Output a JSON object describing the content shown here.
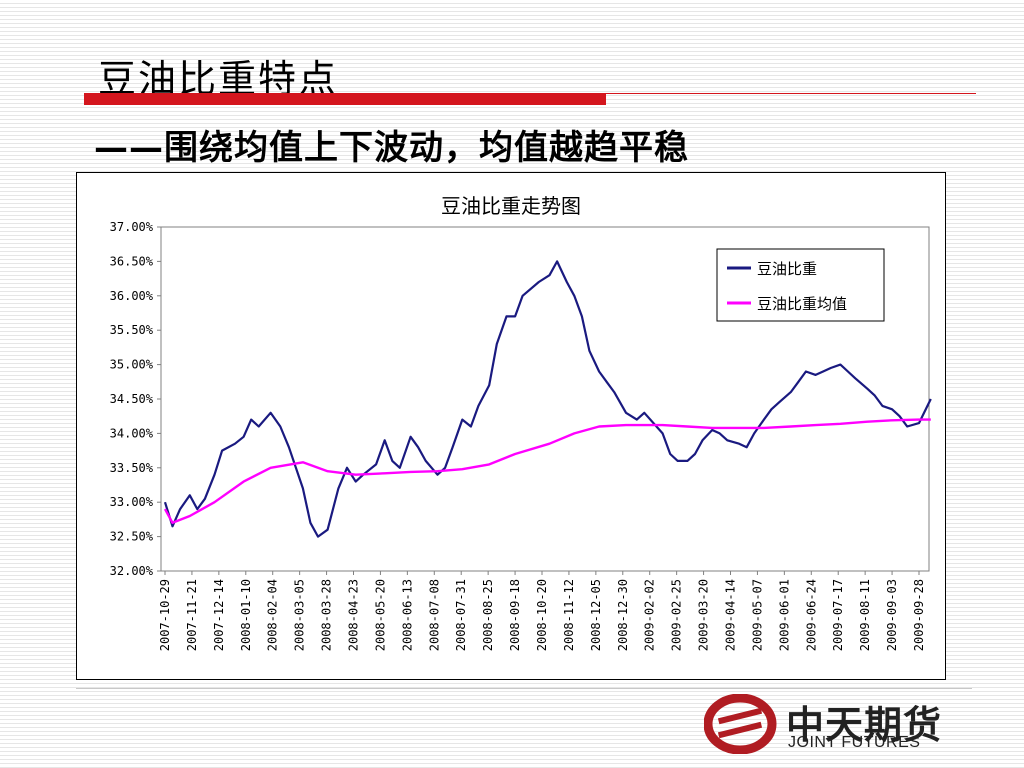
{
  "slide": {
    "title": "豆油比重特点",
    "subtitle": "——围绕均值上下波动，均值越趋平稳"
  },
  "logo": {
    "name_cn": "中天期货",
    "name_en": "JOINT FUTURES"
  },
  "colors": {
    "accent_red": "#d4161e",
    "series_main": "#1a1a80",
    "series_mean": "#ff00ff"
  },
  "chart_data": {
    "type": "line",
    "title": "豆油比重走势图",
    "xlabel": "",
    "ylabel": "",
    "ylim": [
      0.32,
      0.37
    ],
    "y_ticks": [
      "37.00%",
      "36.50%",
      "36.00%",
      "35.50%",
      "35.00%",
      "34.50%",
      "34.00%",
      "33.50%",
      "33.00%",
      "32.50%",
      "32.00%"
    ],
    "x_tick_labels": [
      "2007-10-29",
      "2007-11-21",
      "2007-12-14",
      "2008-01-10",
      "2008-02-04",
      "2008-03-05",
      "2008-03-28",
      "2008-04-23",
      "2008-05-20",
      "2008-06-13",
      "2008-07-08",
      "2008-07-31",
      "2008-08-25",
      "2008-09-18",
      "2008-10-20",
      "2008-11-12",
      "2008-12-05",
      "2008-12-30",
      "2009-02-02",
      "2009-02-25",
      "2009-03-20",
      "2009-04-14",
      "2009-05-07",
      "2009-06-01",
      "2009-06-24",
      "2009-07-17",
      "2009-08-11",
      "2009-09-03",
      "2009-09-28"
    ],
    "legend_position": "top-right",
    "grid": false,
    "series": [
      {
        "name": "豆油比重",
        "color": "#1a1a80",
        "x": [
          "2007-10-29",
          "2007-11-05",
          "2007-11-12",
          "2007-11-21",
          "2007-11-28",
          "2007-12-05",
          "2007-12-14",
          "2007-12-21",
          "2008-01-02",
          "2008-01-10",
          "2008-01-17",
          "2008-01-24",
          "2008-02-04",
          "2008-02-13",
          "2008-02-21",
          "2008-03-05",
          "2008-03-12",
          "2008-03-19",
          "2008-03-28",
          "2008-04-07",
          "2008-04-15",
          "2008-04-23",
          "2008-04-30",
          "2008-05-12",
          "2008-05-20",
          "2008-05-27",
          "2008-06-03",
          "2008-06-13",
          "2008-06-20",
          "2008-06-27",
          "2008-07-08",
          "2008-07-15",
          "2008-07-22",
          "2008-07-31",
          "2008-08-08",
          "2008-08-15",
          "2008-08-25",
          "2008-09-01",
          "2008-09-10",
          "2008-09-18",
          "2008-09-25",
          "2008-10-10",
          "2008-10-20",
          "2008-10-27",
          "2008-11-05",
          "2008-11-12",
          "2008-11-19",
          "2008-11-26",
          "2008-12-05",
          "2008-12-12",
          "2008-12-19",
          "2008-12-30",
          "2009-01-09",
          "2009-01-16",
          "2009-02-02",
          "2009-02-09",
          "2009-02-16",
          "2009-02-25",
          "2009-03-04",
          "2009-03-11",
          "2009-03-20",
          "2009-03-27",
          "2009-04-03",
          "2009-04-14",
          "2009-04-21",
          "2009-04-28",
          "2009-05-07",
          "2009-05-14",
          "2009-05-21",
          "2009-06-01",
          "2009-06-08",
          "2009-06-15",
          "2009-06-24",
          "2009-07-01",
          "2009-07-08",
          "2009-07-17",
          "2009-07-24",
          "2009-07-31",
          "2009-08-11",
          "2009-08-18",
          "2009-08-25",
          "2009-09-03",
          "2009-09-10",
          "2009-09-17",
          "2009-09-28",
          "2009-10-09"
        ],
        "values": [
          0.33,
          0.3265,
          0.329,
          0.331,
          0.329,
          0.3305,
          0.334,
          0.3375,
          0.3385,
          0.3395,
          0.342,
          0.341,
          0.343,
          0.341,
          0.338,
          0.332,
          0.327,
          0.325,
          0.326,
          0.332,
          0.335,
          0.333,
          0.334,
          0.3355,
          0.339,
          0.336,
          0.335,
          0.3395,
          0.338,
          0.336,
          0.334,
          0.335,
          0.338,
          0.342,
          0.341,
          0.344,
          0.347,
          0.353,
          0.357,
          0.357,
          0.36,
          0.362,
          0.363,
          0.365,
          0.362,
          0.36,
          0.357,
          0.352,
          0.349,
          0.3475,
          0.346,
          0.343,
          0.342,
          0.343,
          0.34,
          0.337,
          0.336,
          0.336,
          0.337,
          0.339,
          0.3405,
          0.34,
          0.339,
          0.3385,
          0.338,
          0.34,
          0.342,
          0.3435,
          0.3445,
          0.346,
          0.3475,
          0.349,
          0.3485,
          0.349,
          0.3495,
          0.35,
          0.349,
          0.348,
          0.3465,
          0.3455,
          0.344,
          0.3435,
          0.3425,
          0.341,
          0.3415,
          0.345
        ]
      },
      {
        "name": "豆油比重均值",
        "color": "#ff00ff",
        "x": [
          "2007-10-29",
          "2007-11-05",
          "2007-11-21",
          "2007-12-14",
          "2008-01-10",
          "2008-02-04",
          "2008-03-05",
          "2008-03-28",
          "2008-04-23",
          "2008-05-20",
          "2008-06-13",
          "2008-07-08",
          "2008-07-31",
          "2008-08-25",
          "2008-09-18",
          "2008-10-20",
          "2008-11-12",
          "2008-12-05",
          "2008-12-30",
          "2009-02-02",
          "2009-02-25",
          "2009-03-20",
          "2009-04-14",
          "2009-05-07",
          "2009-06-01",
          "2009-06-24",
          "2009-07-17",
          "2009-08-11",
          "2009-09-03",
          "2009-09-28",
          "2009-10-09"
        ],
        "values": [
          0.329,
          0.327,
          0.328,
          0.33,
          0.333,
          0.335,
          0.3358,
          0.3345,
          0.334,
          0.3342,
          0.3344,
          0.3345,
          0.3348,
          0.3355,
          0.337,
          0.3385,
          0.34,
          0.341,
          0.3412,
          0.3412,
          0.341,
          0.3408,
          0.3408,
          0.3408,
          0.341,
          0.3412,
          0.3414,
          0.3417,
          0.3419,
          0.342,
          0.342
        ]
      }
    ]
  }
}
